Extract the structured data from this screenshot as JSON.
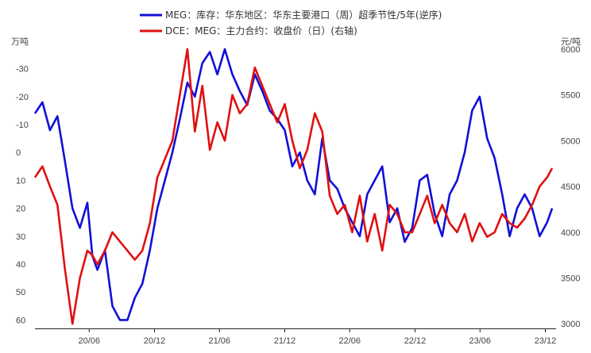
{
  "chart_data": {
    "type": "line",
    "legend_position": "top-center",
    "grid": false,
    "x_axis": {
      "tick_labels": [
        "20/06",
        "20/12",
        "21/06",
        "21/12",
        "22/06",
        "22/12",
        "23/06",
        "23/12"
      ]
    },
    "y_left": {
      "unit": "万吨",
      "reversed": true,
      "range": [
        -37,
        63
      ],
      "tick_labels": [
        "-30",
        "-20",
        "-10",
        "0",
        "10",
        "20",
        "30",
        "40",
        "50",
        "60"
      ],
      "tick_values": [
        -30,
        -20,
        -10,
        0,
        10,
        20,
        30,
        40,
        50,
        60
      ]
    },
    "y_right": {
      "unit": "元/吨",
      "range": [
        2950,
        6000
      ],
      "tick_labels": [
        "3000",
        "3500",
        "4000",
        "4500",
        "5000",
        "5500",
        "6000"
      ],
      "tick_values": [
        3000,
        3500,
        4000,
        4500,
        5000,
        5500,
        6000
      ]
    },
    "series": [
      {
        "name": "MEG：库存：华东地区：华东主要港口（周）超季节性/5年(逆序)",
        "color": "#1010d8",
        "axis": "left",
        "x": [
          "2020-01-01",
          "2020-01-22",
          "2020-02-12",
          "2020-03-04",
          "2020-03-25",
          "2020-04-15",
          "2020-05-06",
          "2020-05-27",
          "2020-06-10",
          "2020-06-24",
          "2020-07-15",
          "2020-08-05",
          "2020-08-26",
          "2020-09-16",
          "2020-10-07",
          "2020-10-28",
          "2020-11-18",
          "2020-12-09",
          "2020-12-30",
          "2021-01-20",
          "2021-02-10",
          "2021-03-03",
          "2021-03-24",
          "2021-04-14",
          "2021-05-05",
          "2021-05-26",
          "2021-06-16",
          "2021-07-07",
          "2021-07-28",
          "2021-08-18",
          "2021-09-08",
          "2021-09-29",
          "2021-10-20",
          "2021-11-10",
          "2021-12-01",
          "2021-12-22",
          "2022-01-12",
          "2022-02-02",
          "2022-02-23",
          "2022-03-16",
          "2022-04-06",
          "2022-04-27",
          "2022-05-18",
          "2022-06-08",
          "2022-06-29",
          "2022-07-20",
          "2022-08-10",
          "2022-08-31",
          "2022-09-21",
          "2022-10-12",
          "2022-11-02",
          "2022-11-23",
          "2022-12-14",
          "2023-01-04",
          "2023-01-25",
          "2023-02-15",
          "2023-03-08",
          "2023-03-29",
          "2023-04-19",
          "2023-05-10",
          "2023-05-31",
          "2023-06-21",
          "2023-07-12",
          "2023-08-02",
          "2023-08-23",
          "2023-09-13",
          "2023-10-04",
          "2023-10-25",
          "2023-11-15",
          "2023-12-06",
          "2023-12-20"
        ],
        "values": [
          -14,
          -18,
          -8,
          -13,
          3,
          20,
          27,
          18,
          37,
          42,
          35,
          55,
          60,
          60,
          52,
          47,
          35,
          20,
          10,
          0,
          -12,
          -25,
          -20,
          -32,
          -36,
          -28,
          -37,
          -28,
          -22,
          -17,
          -28,
          -22,
          -15,
          -12,
          -8,
          5,
          0,
          10,
          15,
          -5,
          10,
          13,
          20,
          25,
          30,
          15,
          10,
          5,
          25,
          20,
          32,
          27,
          10,
          8,
          22,
          30,
          15,
          10,
          0,
          -15,
          -20,
          -5,
          2,
          15,
          30,
          20,
          15,
          20,
          30,
          25,
          20
        ],
        "labels": []
      },
      {
        "name": "DCE：MEG：主力合约：收盘价（日）(右轴)",
        "color": "#e01010",
        "axis": "right",
        "x": [
          "2020-01-01",
          "2020-01-22",
          "2020-02-12",
          "2020-03-04",
          "2020-03-25",
          "2020-04-15",
          "2020-05-06",
          "2020-05-27",
          "2020-06-10",
          "2020-06-24",
          "2020-07-15",
          "2020-08-05",
          "2020-08-26",
          "2020-09-16",
          "2020-10-07",
          "2020-10-28",
          "2020-11-18",
          "2020-12-09",
          "2020-12-30",
          "2021-01-20",
          "2021-02-10",
          "2021-03-03",
          "2021-03-24",
          "2021-04-14",
          "2021-05-05",
          "2021-05-26",
          "2021-06-16",
          "2021-07-07",
          "2021-07-28",
          "2021-08-18",
          "2021-09-08",
          "2021-09-29",
          "2021-10-20",
          "2021-11-10",
          "2021-12-01",
          "2021-12-22",
          "2022-01-12",
          "2022-02-02",
          "2022-02-23",
          "2022-03-16",
          "2022-04-06",
          "2022-04-27",
          "2022-05-18",
          "2022-06-08",
          "2022-06-29",
          "2022-07-20",
          "2022-08-10",
          "2022-08-31",
          "2022-09-21",
          "2022-10-12",
          "2022-11-02",
          "2022-11-23",
          "2022-12-14",
          "2023-01-04",
          "2023-01-25",
          "2023-02-15",
          "2023-03-08",
          "2023-03-29",
          "2023-04-19",
          "2023-05-10",
          "2023-05-31",
          "2023-06-21",
          "2023-07-12",
          "2023-08-02",
          "2023-08-23",
          "2023-09-13",
          "2023-10-04",
          "2023-10-25",
          "2023-11-15",
          "2023-12-06",
          "2023-12-20"
        ],
        "values": [
          4600,
          4720,
          4500,
          4300,
          3600,
          3000,
          3500,
          3800,
          3750,
          3650,
          3800,
          4000,
          3900,
          3800,
          3700,
          3800,
          4100,
          4600,
          4800,
          5000,
          5500,
          6000,
          5100,
          5600,
          4900,
          5200,
          5000,
          5500,
          5300,
          5400,
          5800,
          5600,
          5400,
          5200,
          5400,
          5000,
          4700,
          4900,
          5300,
          5100,
          4400,
          4200,
          4300,
          4000,
          4400,
          3900,
          4200,
          3800,
          4300,
          4200,
          4000,
          4000,
          4200,
          4400,
          4100,
          4300,
          4100,
          4000,
          4200,
          3900,
          4100,
          3950,
          4000,
          4200,
          4100,
          4050,
          4150,
          4300,
          4500,
          4600,
          4700
        ],
        "labels": []
      }
    ]
  }
}
